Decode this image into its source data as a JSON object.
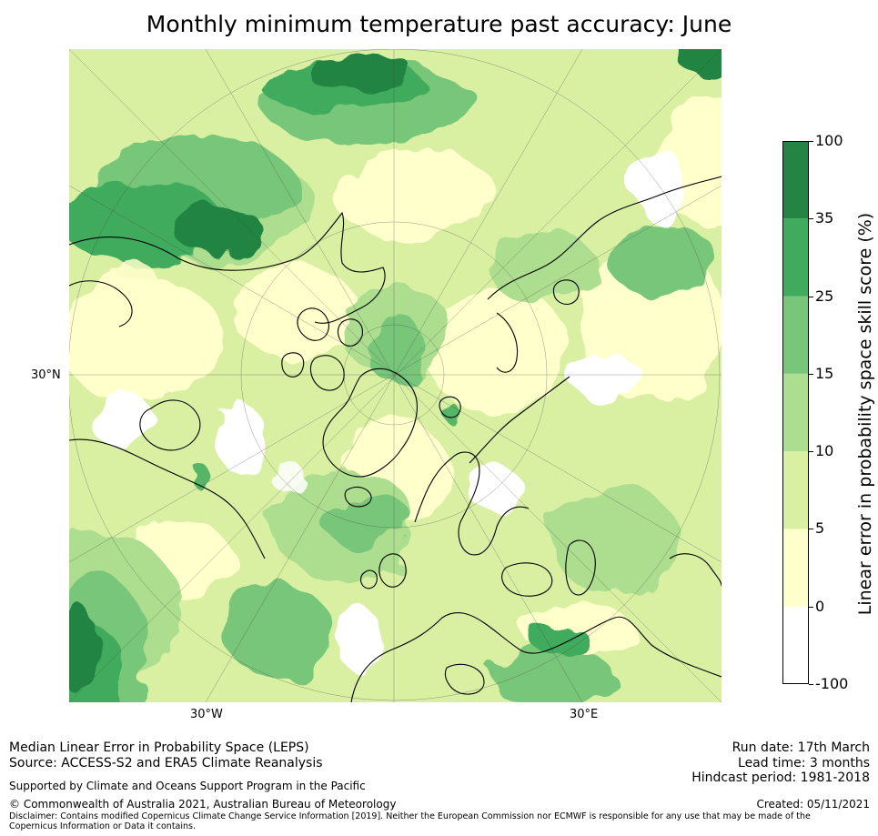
{
  "title": "Monthly minimum temperature past accuracy: June",
  "map": {
    "graticule_labels": {
      "lat_30n": "30°N",
      "lon_30w": "30°W",
      "lon_30e": "30°E"
    }
  },
  "colorbar": {
    "label": "Linear error in probability space skill score (%)",
    "bins": [
      {
        "from": -100,
        "to": 0,
        "color": "#ffffff"
      },
      {
        "from": 0,
        "to": 5,
        "color": "#ffffcc"
      },
      {
        "from": 5,
        "to": 10,
        "color": "#d9f0a3"
      },
      {
        "from": 10,
        "to": 15,
        "color": "#addd8e"
      },
      {
        "from": 15,
        "to": 25,
        "color": "#78c679"
      },
      {
        "from": 25,
        "to": 35,
        "color": "#41ab5d"
      },
      {
        "from": 35,
        "to": 100,
        "color": "#238443"
      }
    ],
    "ticks": [
      "-100",
      "0",
      "5",
      "10",
      "15",
      "25",
      "35",
      "100"
    ]
  },
  "footer": {
    "left_line1": "Median Linear Error in Probability Space (LEPS)",
    "left_line2": "Source: ACCESS-S2 and ERA5 Climate Reanalysis",
    "support": "Supported by Climate and Oceans Support Program in the Pacific",
    "copyright": "© Commonwealth of Australia 2021, Australian Bureau of Meteorology",
    "disclaimer": "Disclaimer: Contains modified Copernicus Climate Change Service Information [2019]. Neither the European Commission nor ECMWF is responsible for any use that may be made of the Copernicus Information or Data it contains.",
    "run_date": "Run date: 17th March",
    "lead_time": "Lead time: 3 months",
    "hindcast": "Hindcast period: 1981-2018",
    "created": "Created: 05/11/2021"
  }
}
